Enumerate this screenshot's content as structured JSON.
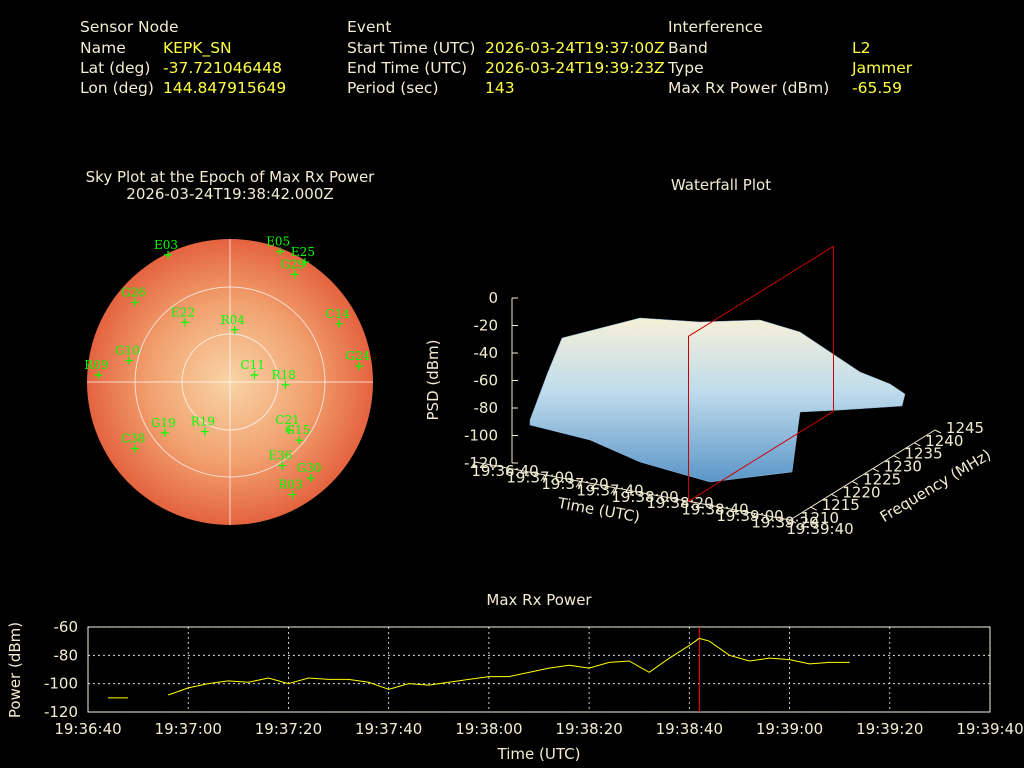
{
  "header": {
    "sensor_node": {
      "heading": "Sensor Node",
      "rows": [
        [
          "Name",
          "KEPK_SN"
        ],
        [
          "Lat (deg)",
          "-37.721046448"
        ],
        [
          "Lon (deg)",
          "144.847915649"
        ]
      ]
    },
    "event": {
      "heading": "Event",
      "rows": [
        [
          "Start Time (UTC)",
          "2026-03-24T19:37:00Z"
        ],
        [
          "End Time (UTC)",
          "2026-03-24T19:39:23Z"
        ],
        [
          "Period (sec)",
          "143"
        ]
      ]
    },
    "interference": {
      "heading": "Interference",
      "rows": [
        [
          "Band",
          "L2"
        ],
        [
          "Type",
          "Jammer"
        ],
        [
          "Max Rx Power (dBm)",
          "-65.59"
        ]
      ]
    }
  },
  "chart_data": [
    {
      "type": "polar",
      "title": "Sky Plot at the Epoch of Max Rx Power",
      "subtitle": "2026-03-24T19:38:42.000Z",
      "color": "#00ff00",
      "points": [
        {
          "name": "E03",
          "azimuth": 334,
          "elevation": 1
        },
        {
          "name": "E05",
          "azimuth": 21,
          "elevation": 2
        },
        {
          "name": "E25",
          "azimuth": 32,
          "elevation": 1
        },
        {
          "name": "G29",
          "azimuth": 31,
          "elevation": 11
        },
        {
          "name": "G26",
          "azimuth": 310,
          "elevation": 12
        },
        {
          "name": "C14",
          "azimuth": 62,
          "elevation": 12
        },
        {
          "name": "G24",
          "azimuth": 83,
          "elevation": 8
        },
        {
          "name": "G10",
          "azimuth": 282,
          "elevation": 25
        },
        {
          "name": "R09",
          "azimuth": 273,
          "elevation": 7
        },
        {
          "name": "R04",
          "azimuth": 5,
          "elevation": 57
        },
        {
          "name": "C11",
          "azimuth": 74,
          "elevation": 74
        },
        {
          "name": "R18",
          "azimuth": 93,
          "elevation": 55
        },
        {
          "name": "G15",
          "azimuth": 130,
          "elevation": 33
        },
        {
          "name": "C21",
          "azimuth": 129,
          "elevation": 42
        },
        {
          "name": "G19",
          "azimuth": 232,
          "elevation": 38
        },
        {
          "name": "R19",
          "azimuth": 207,
          "elevation": 55
        },
        {
          "name": "C38",
          "azimuth": 235,
          "elevation": 17
        },
        {
          "name": "G30",
          "azimuth": 140,
          "elevation": 11
        },
        {
          "name": "R03",
          "azimuth": 151,
          "elevation": 9
        },
        {
          "name": "E36",
          "azimuth": 148,
          "elevation": 28
        },
        {
          "name": "E22",
          "azimuth": 323,
          "elevation": 43
        }
      ]
    },
    {
      "type": "surface",
      "title": "Waterfall Plot",
      "xlabel": "Time (UTC)",
      "ylabel": "Frequency (MHz)",
      "zlabel": "PSD (dBm)",
      "xlim": [
        "19:36:40",
        "19:39:40"
      ],
      "xticks": [
        "19:36:40",
        "19:37:00",
        "19:37:20",
        "19:37:40",
        "19:38:00",
        "19:38:20",
        "19:38:40",
        "19:39:00",
        "19:39:20",
        "19:39:40"
      ],
      "ylim": [
        1210,
        1245
      ],
      "yticks": [
        1210,
        1215,
        1220,
        1225,
        1230,
        1235,
        1240,
        1245
      ],
      "zlim": [
        -120,
        0
      ],
      "zticks": [
        -120,
        -100,
        -80,
        -60,
        -40,
        -20,
        0
      ],
      "marker_x": "19:38:42",
      "marker_color": "#cc0000"
    },
    {
      "type": "line",
      "title": "Max Rx Power",
      "xlabel": "Time (UTC)",
      "ylabel": "Power (dBm)",
      "xlim": [
        "19:36:40",
        "19:39:40"
      ],
      "xticks": [
        "19:36:40",
        "19:37:00",
        "19:37:20",
        "19:37:40",
        "19:38:00",
        "19:38:20",
        "19:38:40",
        "19:39:00",
        "19:39:20",
        "19:39:40"
      ],
      "ylim": [
        -120,
        -60
      ],
      "yticks": [
        -120,
        -100,
        -80,
        -60
      ],
      "grid": true,
      "x": [
        "19:36:44",
        "19:36:48",
        "19:36:52",
        "19:36:56",
        "19:37:00",
        "19:37:04",
        "19:37:08",
        "19:37:12",
        "19:37:16",
        "19:37:20",
        "19:37:24",
        "19:37:28",
        "19:37:32",
        "19:37:36",
        "19:37:40",
        "19:37:44",
        "19:37:48",
        "19:37:52",
        "19:37:56",
        "19:38:00",
        "19:38:04",
        "19:38:08",
        "19:38:12",
        "19:38:16",
        "19:38:20",
        "19:38:24",
        "19:38:28",
        "19:38:32",
        "19:38:36",
        "19:38:40",
        "19:38:42",
        "19:38:44",
        "19:38:48",
        "19:38:52",
        "19:38:56",
        "19:39:00",
        "19:39:04",
        "19:39:08",
        "19:39:12"
      ],
      "series": [
        {
          "color": "#ffff00",
          "values": [
            -110,
            -110,
            null,
            -108,
            -103,
            -100,
            -98,
            -99,
            -96,
            -100,
            -96,
            -97,
            -97,
            -99,
            -104,
            -100,
            -101,
            -99,
            -97,
            -95,
            -95,
            -92,
            -89,
            -87,
            -89,
            -85,
            -84,
            -92,
            -82,
            -73,
            -68,
            -70,
            -80,
            -84,
            -82,
            -83,
            -86,
            -85,
            -85
          ]
        }
      ],
      "marker_x": "19:38:42",
      "marker_color": "#ff0000"
    }
  ]
}
